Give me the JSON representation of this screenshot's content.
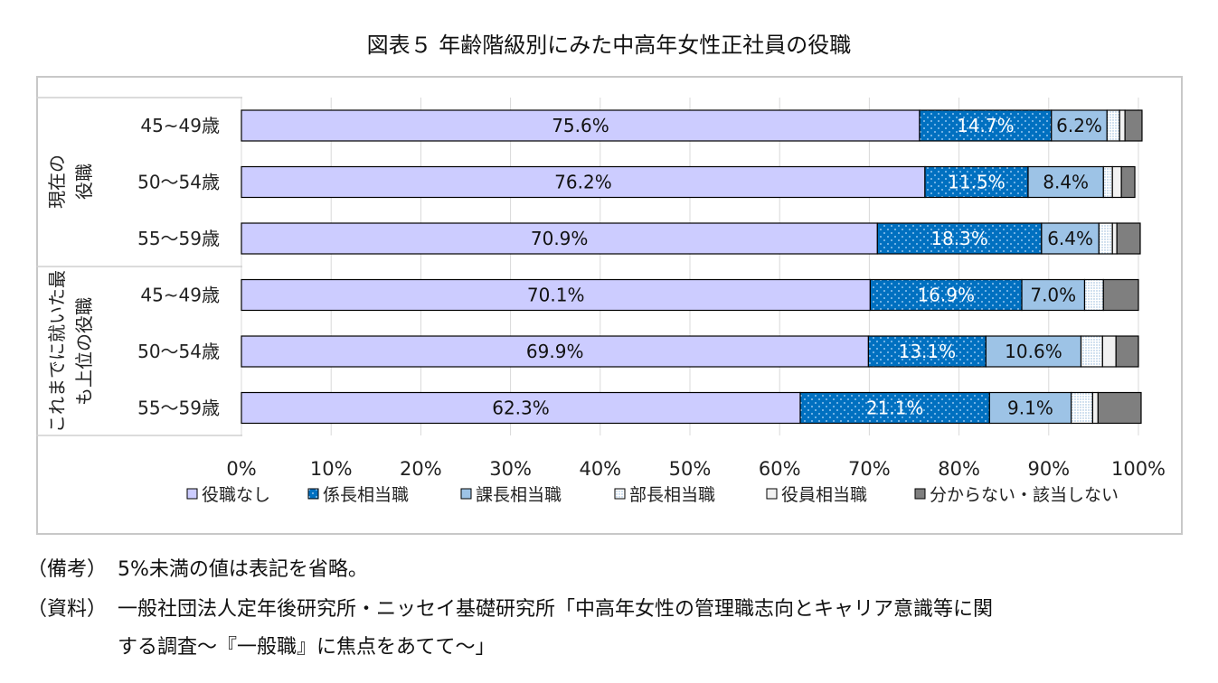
{
  "chart_data": {
    "type": "bar",
    "orientation": "horizontal",
    "stacked": true,
    "title": "図表５ 年齢階級別にみた中高年女性正社員の役職",
    "groups": [
      {
        "label": "現在の役職",
        "rows": [
          "45~49歳",
          "50～54歳",
          "55～59歳"
        ]
      },
      {
        "label": "これまでに就いた最も上位の役職",
        "rows": [
          "45~49歳",
          "50～54歳",
          "55～59歳"
        ]
      }
    ],
    "categories": [
      "45~49歳",
      "50～54歳",
      "55～59歳",
      "45~49歳",
      "50～54歳",
      "55～59歳"
    ],
    "series": [
      {
        "name": "役職なし",
        "values": [
          75.6,
          76.2,
          70.9,
          70.1,
          69.9,
          62.3
        ],
        "labels": [
          "75.6%",
          "76.2%",
          "70.9%",
          "70.1%",
          "69.9%",
          "62.3%"
        ],
        "color": "#ccccff"
      },
      {
        "name": "係長相当職",
        "values": [
          14.7,
          11.5,
          18.3,
          16.9,
          13.1,
          21.1
        ],
        "labels": [
          "14.7%",
          "11.5%",
          "18.3%",
          "16.9%",
          "13.1%",
          "21.1%"
        ],
        "color": "#0070c0"
      },
      {
        "name": "課長相当職",
        "values": [
          6.2,
          8.4,
          6.4,
          7.0,
          10.6,
          9.1
        ],
        "labels": [
          "6.2%",
          "8.4%",
          "6.4%",
          "7.0%",
          "10.6%",
          "9.1%"
        ],
        "color": "#9dc3e6"
      },
      {
        "name": "部長相当職",
        "values": [
          1.4,
          1.0,
          1.5,
          2.1,
          2.4,
          2.4
        ],
        "labels": [
          "",
          "",
          "",
          "",
          "",
          ""
        ],
        "color": "#deebf7"
      },
      {
        "name": "役員相当職",
        "values": [
          0.6,
          1.0,
          0.5,
          0.0,
          1.5,
          0.6
        ],
        "labels": [
          "",
          "",
          "",
          "",
          "",
          ""
        ],
        "color": "#f2f2f2"
      },
      {
        "name": "分からない・該当しない",
        "values": [
          1.9,
          1.5,
          2.6,
          3.9,
          2.5,
          4.8
        ],
        "labels": [
          "",
          "",
          "",
          "",
          "",
          ""
        ],
        "color": "#7f7f7f"
      }
    ],
    "x_ticks": [
      "0%",
      "10%",
      "20%",
      "30%",
      "40%",
      "50%",
      "60%",
      "70%",
      "80%",
      "90%",
      "100%"
    ],
    "xlim": [
      0,
      100
    ],
    "grid": true,
    "legend_position": "bottom"
  },
  "notes": {
    "note1_label": "（備考）",
    "note1_text": "5%未満の値は表記を省略。",
    "note2_label": "（資料）",
    "note2_text_line1": "一般社団法人定年後研究所・ニッセイ基礎研究所「中高年女性の管理職志向とキャリア意識等に関",
    "note2_text_line2": "する調査～『一般職』に焦点をあてて～」"
  }
}
